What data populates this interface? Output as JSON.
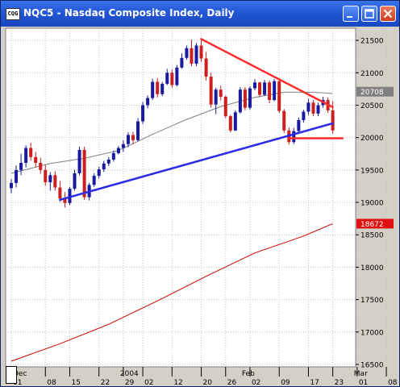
{
  "window": {
    "title": "NQC5 - Nasdaq Composite Index, Daily",
    "icon_text": "CQG"
  },
  "colors": {
    "background": "#ffffff",
    "grid": "#c0c0c0",
    "bull_candle": "#1a1aa0",
    "bear_candle": "#cc1f1f",
    "resistance_line": "#ff2a2a",
    "support_line": "#2a2ae8",
    "moving_average_short": "#808080",
    "moving_average_long": "#cc0000"
  },
  "chart_data": {
    "type": "candlestick",
    "title": "NQC5 - Nasdaq Composite Index, Daily",
    "ylim": [
      16500,
      21650
    ],
    "y_ticks": [
      16500,
      17000,
      17500,
      18000,
      18500,
      19000,
      19500,
      20000,
      20500,
      21000,
      21500
    ],
    "x_ticks": [
      "01",
      "08",
      "15",
      "22",
      "29",
      "02",
      "12",
      "20",
      "26",
      "02",
      "09",
      "17",
      "23",
      "01",
      "08"
    ],
    "x_month_labels": [
      {
        "label": "Dec",
        "day_index": 0
      },
      {
        "label": "2004",
        "day_index": 22
      },
      {
        "label": "Feb",
        "day_index": 47
      },
      {
        "label": "Mar",
        "day_index": 70
      }
    ],
    "price_tags": [
      {
        "value": 20708,
        "label": "20708",
        "style": "gray"
      },
      {
        "value": 18672,
        "label": "18672",
        "style": "red"
      }
    ],
    "candles": [
      [
        19220,
        19360,
        19140,
        19300
      ],
      [
        19300,
        19570,
        19230,
        19500
      ],
      [
        19500,
        19750,
        19420,
        19610
      ],
      [
        19610,
        19880,
        19540,
        19840
      ],
      [
        19840,
        19920,
        19640,
        19700
      ],
      [
        19700,
        19780,
        19540,
        19610
      ],
      [
        19610,
        19690,
        19440,
        19500
      ],
      [
        19500,
        19580,
        19260,
        19310
      ],
      [
        19310,
        19470,
        19180,
        19420
      ],
      [
        19420,
        19480,
        19180,
        19230
      ],
      [
        19230,
        19330,
        19010,
        19060
      ],
      [
        19060,
        19160,
        18920,
        18990
      ],
      [
        18990,
        19240,
        18960,
        19210
      ],
      [
        19210,
        19500,
        19180,
        19450
      ],
      [
        19450,
        19860,
        19420,
        19810
      ],
      [
        19810,
        19860,
        19040,
        19080
      ],
      [
        19080,
        19300,
        19030,
        19270
      ],
      [
        19270,
        19450,
        19240,
        19410
      ],
      [
        19410,
        19550,
        19370,
        19510
      ],
      [
        19510,
        19640,
        19470,
        19600
      ],
      [
        19600,
        19700,
        19560,
        19660
      ],
      [
        19660,
        19800,
        19630,
        19760
      ],
      [
        19760,
        19870,
        19740,
        19840
      ],
      [
        19840,
        19960,
        19780,
        19900
      ],
      [
        19900,
        20080,
        19850,
        20040
      ],
      [
        20040,
        20090,
        19900,
        19960
      ],
      [
        19960,
        20300,
        19940,
        20250
      ],
      [
        20250,
        20550,
        20210,
        20500
      ],
      [
        20500,
        20650,
        20450,
        20610
      ],
      [
        20610,
        20910,
        20580,
        20860
      ],
      [
        20860,
        20920,
        20620,
        20670
      ],
      [
        20670,
        20860,
        20640,
        20830
      ],
      [
        20830,
        21060,
        20810,
        21000
      ],
      [
        21000,
        21050,
        20770,
        20810
      ],
      [
        20810,
        21120,
        20790,
        21080
      ],
      [
        21080,
        21300,
        21060,
        21230
      ],
      [
        21230,
        21420,
        21200,
        21380
      ],
      [
        21380,
        21510,
        21100,
        21140
      ],
      [
        21140,
        21460,
        21100,
        21420
      ],
      [
        21420,
        21520,
        21170,
        21220
      ],
      [
        21220,
        21320,
        20880,
        20940
      ],
      [
        20940,
        21000,
        20460,
        20510
      ],
      [
        20510,
        20770,
        20360,
        20740
      ],
      [
        20740,
        20800,
        20570,
        20630
      ],
      [
        20630,
        20650,
        20300,
        20330
      ],
      [
        20330,
        20350,
        20080,
        20110
      ],
      [
        20110,
        20420,
        20100,
        20390
      ],
      [
        20390,
        20780,
        20370,
        20740
      ],
      [
        20740,
        20780,
        20420,
        20460
      ],
      [
        20460,
        20790,
        20430,
        20760
      ],
      [
        20760,
        20900,
        20730,
        20850
      ],
      [
        20850,
        20860,
        20620,
        20660
      ],
      [
        20660,
        20890,
        20640,
        20850
      ],
      [
        20850,
        20880,
        20530,
        20580
      ],
      [
        20580,
        20900,
        20560,
        20870
      ],
      [
        20870,
        20920,
        20380,
        20410
      ],
      [
        20410,
        20440,
        20070,
        20110
      ],
      [
        20110,
        20160,
        19890,
        19930
      ],
      [
        19930,
        20150,
        19900,
        20100
      ],
      [
        20100,
        20310,
        20060,
        20270
      ],
      [
        20270,
        20430,
        20230,
        20400
      ],
      [
        20400,
        20600,
        20350,
        20540
      ],
      [
        20540,
        20580,
        20330,
        20370
      ],
      [
        20370,
        20540,
        20330,
        20500
      ],
      [
        20500,
        20630,
        20460,
        20580
      ],
      [
        20580,
        20620,
        20380,
        20420
      ],
      [
        20420,
        20560,
        20060,
        20110
      ]
    ],
    "series": [
      {
        "type": "line",
        "points": [
          [
            0,
            19450
          ],
          [
            8,
            19600
          ],
          [
            15,
            19680
          ],
          [
            22,
            19800
          ],
          [
            29,
            20050
          ],
          [
            36,
            20280
          ],
          [
            43,
            20480
          ],
          [
            50,
            20620
          ],
          [
            56,
            20700
          ],
          [
            62,
            20700
          ],
          [
            66,
            20680
          ]
        ]
      },
      {
        "type": "line",
        "points": [
          [
            0,
            16550
          ],
          [
            10,
            16820
          ],
          [
            20,
            17120
          ],
          [
            30,
            17480
          ],
          [
            40,
            17860
          ],
          [
            50,
            18220
          ],
          [
            60,
            18480
          ],
          [
            66,
            18672
          ]
        ]
      }
    ],
    "trendlines": [
      {
        "name": "resistance",
        "start": [
          39,
          21520
        ],
        "end": [
          66,
          20470
        ]
      },
      {
        "name": "support",
        "start": [
          10,
          19040
        ],
        "end": [
          66,
          20220
        ]
      },
      {
        "name": "support-level",
        "start": [
          57,
          19990
        ],
        "end": [
          68,
          19990
        ]
      }
    ]
  }
}
